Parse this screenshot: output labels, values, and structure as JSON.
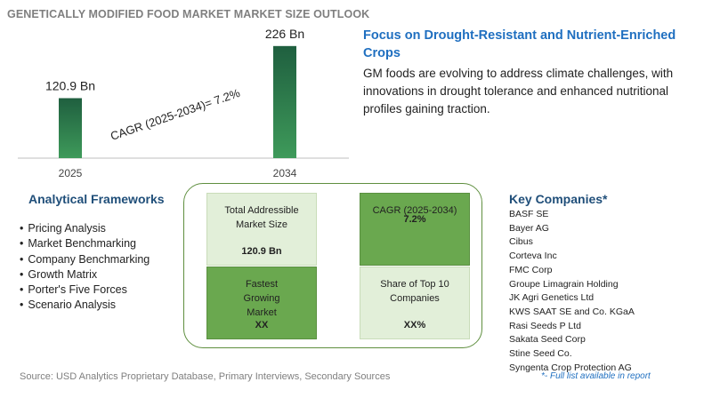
{
  "header": {
    "title": "GENETICALLY MODIFIED FOOD MARKET MARKET SIZE OUTLOOK"
  },
  "chart_data": {
    "type": "bar",
    "title": "GENETICALLY MODIFIED FOOD MARKET MARKET SIZE OUTLOOK",
    "categories": [
      "2025",
      "2034"
    ],
    "values": [
      120.9,
      226
    ],
    "data_labels": [
      "120.9 Bn",
      "226 Bn"
    ],
    "unit": "Bn",
    "annotation": "CAGR (2025-2034)=   7.2%",
    "ylim": [
      0,
      240
    ],
    "grid": false,
    "legend": "none",
    "bar_color_top": "#1f5f3f",
    "bar_color_bottom": "#3e9a5a"
  },
  "focus": {
    "title": "Focus on Drought-Resistant and Nutrient-Enriched Crops",
    "text": "GM foods are evolving to address climate challenges, with innovations in drought tolerance and enhanced nutritional profiles gaining traction."
  },
  "frameworks": {
    "title": "Analytical Frameworks",
    "items": [
      "Pricing Analysis",
      "Market Benchmarking",
      "Company Benchmarking",
      "Growth Matrix",
      "Porter's Five Forces",
      "Scenario Analysis"
    ]
  },
  "metrics": {
    "tam": {
      "label": "Total Addressible Market Size",
      "value": "120.9 Bn"
    },
    "cagr": {
      "label": "CAGR (2025-2034)",
      "value": "7.2%"
    },
    "fastest": {
      "label": "Fastest Growing Market",
      "value": "XX"
    },
    "share": {
      "label": "Share of Top 10 Companies",
      "value": "XX%"
    }
  },
  "companies": {
    "title": "Key Companies*",
    "items": [
      "BASF SE",
      "Bayer AG",
      "Cibus",
      "Corteva Inc",
      "FMC Corp",
      "Groupe Limagrain Holding",
      "JK Agri Genetics Ltd",
      "KWS SAAT SE and Co. KGaA",
      "Rasi Seeds P Ltd",
      "Sakata Seed Corp",
      "Stine Seed Co.",
      "Syngenta Crop Protection AG"
    ]
  },
  "footer": {
    "source": "Source: USD Analytics Proprietary Database, Primary Interviews, Secondary Sources",
    "note": "*- Full list available in report"
  },
  "colors": {
    "accent_blue": "#1f6fc0",
    "heading_navy": "#1f4e79",
    "metric_light": "#e2efd9",
    "metric_dark": "#6aa84f",
    "frame_green": "#5f8f3f"
  }
}
